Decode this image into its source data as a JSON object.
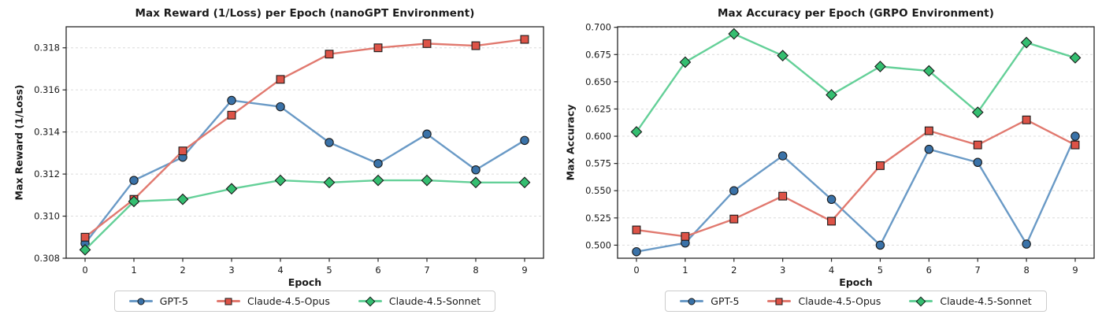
{
  "figure": {
    "background": "#ffffff",
    "text_color": "#1a1a1a",
    "grid_color": "#dcdcdc",
    "spine_color": "#262626",
    "legend_border_color": "#cccccc"
  },
  "chart_data": [
    {
      "type": "line",
      "title": "Max Reward (1/Loss) per Epoch (nanoGPT Environment)",
      "xlabel": "Epoch",
      "ylabel": "Max Reward (1/Loss)",
      "x": [
        0,
        1,
        2,
        3,
        4,
        5,
        6,
        7,
        8,
        9
      ],
      "ylim": [
        0.308,
        0.319
      ],
      "yticks": [
        0.308,
        0.31,
        0.312,
        0.314,
        0.316,
        0.318
      ],
      "ytick_labels": [
        "0.308",
        "0.310",
        "0.312",
        "0.314",
        "0.316",
        "0.318"
      ],
      "grid": "horizontal-dashed",
      "legend_position": "below-center",
      "series": [
        {
          "name": "GPT-5",
          "marker": "circle",
          "line_color": "#6a9ac6",
          "marker_color": "#3a72a8",
          "values": [
            0.3087,
            0.3117,
            0.3128,
            0.3155,
            0.3152,
            0.3135,
            0.3125,
            0.3139,
            0.3122,
            0.3136
          ]
        },
        {
          "name": "Claude-4.5-Opus",
          "marker": "square",
          "line_color": "#e1796f",
          "marker_color": "#dd5347",
          "values": [
            0.309,
            0.3108,
            0.3131,
            0.3148,
            0.3165,
            0.3177,
            0.318,
            0.3182,
            0.3181,
            0.3184
          ]
        },
        {
          "name": "Claude-4.5-Sonnet",
          "marker": "diamond",
          "line_color": "#64d098",
          "marker_color": "#34be70",
          "values": [
            0.3084,
            0.3107,
            0.3108,
            0.3113,
            0.3117,
            0.3116,
            0.3117,
            0.3117,
            0.3116,
            0.3116
          ]
        }
      ]
    },
    {
      "type": "line",
      "title": "Max Accuracy per Epoch (GRPO Environment)",
      "xlabel": "Epoch",
      "ylabel": "Max Accuracy",
      "x": [
        0,
        1,
        2,
        3,
        4,
        5,
        6,
        7,
        8,
        9
      ],
      "ylim": [
        0.488,
        0.7005
      ],
      "yticks": [
        0.5,
        0.525,
        0.55,
        0.575,
        0.6,
        0.625,
        0.65,
        0.675,
        0.7
      ],
      "ytick_labels": [
        "0.500",
        "0.525",
        "0.550",
        "0.575",
        "0.600",
        "0.625",
        "0.650",
        "0.675",
        "0.700"
      ],
      "grid": "horizontal-dashed",
      "legend_position": "below-center",
      "series": [
        {
          "name": "GPT-5",
          "marker": "circle",
          "line_color": "#6a9ac6",
          "marker_color": "#3a72a8",
          "values": [
            0.494,
            0.502,
            0.55,
            0.582,
            0.542,
            0.5,
            0.588,
            0.576,
            0.501,
            0.6
          ]
        },
        {
          "name": "Claude-4.5-Opus",
          "marker": "square",
          "line_color": "#e1796f",
          "marker_color": "#dd5347",
          "values": [
            0.514,
            0.508,
            0.524,
            0.545,
            0.522,
            0.573,
            0.605,
            0.592,
            0.615,
            0.592
          ]
        },
        {
          "name": "Claude-4.5-Sonnet",
          "marker": "diamond",
          "line_color": "#64d098",
          "marker_color": "#34be70",
          "values": [
            0.604,
            0.668,
            0.694,
            0.674,
            0.638,
            0.664,
            0.66,
            0.622,
            0.686,
            0.672
          ]
        }
      ]
    }
  ]
}
